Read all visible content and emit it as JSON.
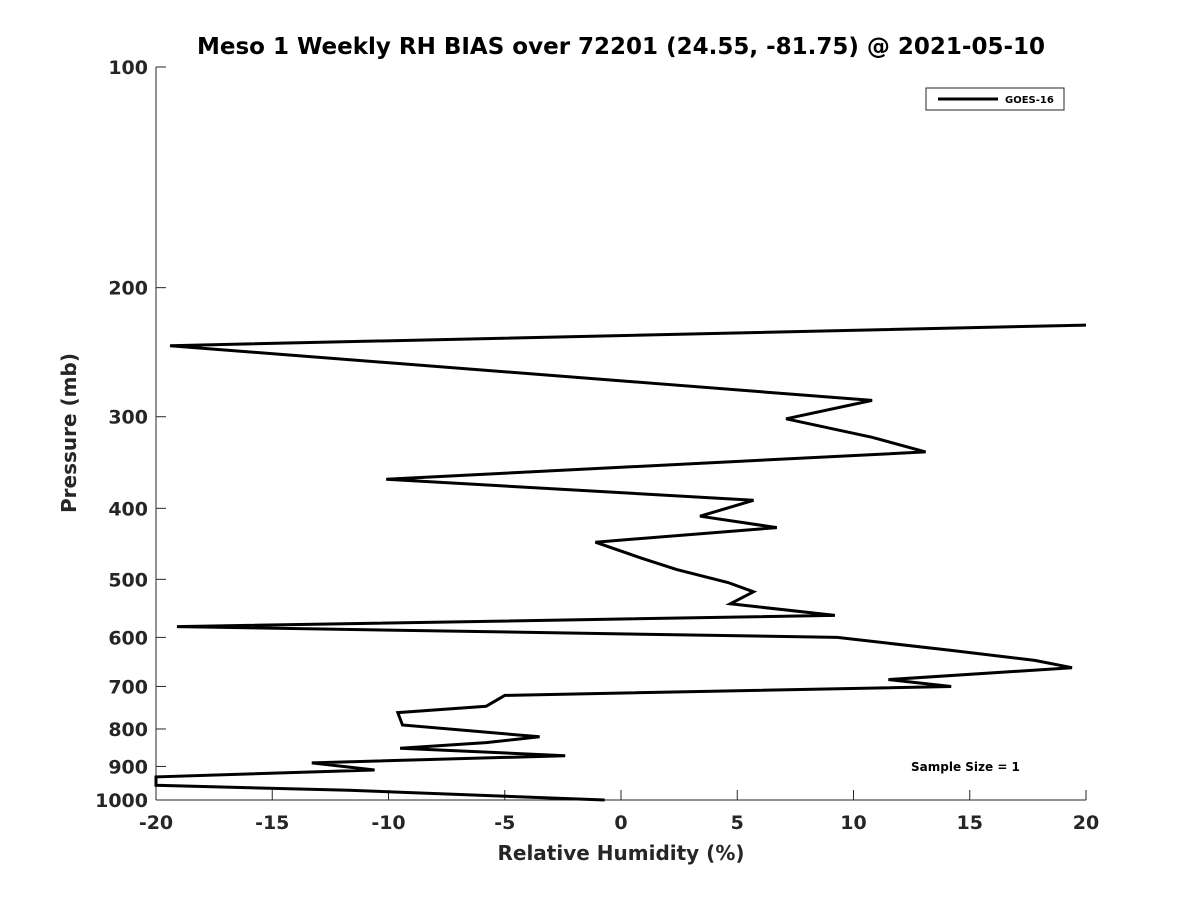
{
  "chart_data": {
    "type": "line",
    "title": "Meso 1 Weekly RH BIAS over 72201 (24.55, -81.75) @ 2021-05-10",
    "xlabel": "Relative Humidity (%)",
    "ylabel": "Pressure (mb)",
    "xlim": [
      -20,
      20
    ],
    "ylim": [
      100,
      1000
    ],
    "yscale": "log",
    "y_reversed": true,
    "xticks": [
      -20,
      -15,
      -10,
      -5,
      0,
      5,
      10,
      15,
      20
    ],
    "yticks": [
      100,
      200,
      300,
      400,
      500,
      600,
      700,
      800,
      900,
      1000
    ],
    "grid": false,
    "legend_position": "top-right",
    "annotation": "Sample Size = 1",
    "series": [
      {
        "name": "GOES-16",
        "color": "#000000",
        "x": [
          20,
          -19.4,
          10.8,
          7.1,
          10.8,
          13.1,
          -10.1,
          5.7,
          3.4,
          6.7,
          -1.1,
          0.9,
          2.4,
          4.6,
          5.7,
          4.7,
          9.2,
          -19.1,
          9.3,
          14.2,
          17.8,
          19.4,
          11.5,
          14.2,
          -5.0,
          -5.8,
          -9.6,
          -9.4,
          -3.5,
          -5.8,
          -9.5,
          -2.4,
          -13.3,
          -10.6,
          -20,
          -20,
          -11.7,
          -0.7
        ],
        "y": [
          225,
          240,
          285,
          302,
          320,
          335,
          365,
          390,
          410,
          425,
          445,
          468,
          485,
          505,
          520,
          540,
          560,
          580,
          600,
          625,
          645,
          660,
          685,
          700,
          720,
          745,
          760,
          790,
          820,
          835,
          850,
          870,
          890,
          910,
          930,
          955,
          970,
          1000
        ]
      }
    ]
  }
}
